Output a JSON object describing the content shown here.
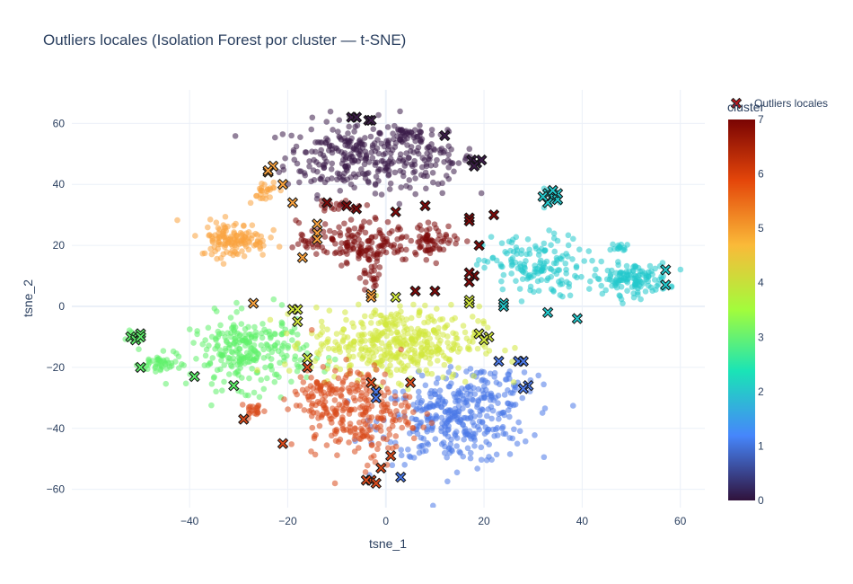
{
  "chart_data": {
    "type": "scatter",
    "title": "Outliers locales (Isolation Forest por cluster — t-SNE)",
    "xlabel": "tsne_1",
    "ylabel": "tsne_2",
    "xlim": [
      -64,
      65
    ],
    "ylim": [
      -66,
      71
    ],
    "xticks": [
      -40,
      -20,
      0,
      20,
      40,
      60
    ],
    "xtick_labels": [
      "−40",
      "−20",
      "0",
      "20",
      "40",
      "60"
    ],
    "yticks": [
      -60,
      -40,
      -20,
      0,
      20,
      40,
      60
    ],
    "ytick_labels": [
      "−60",
      "−40",
      "−20",
      "0",
      "20",
      "40",
      "60"
    ],
    "grid": true,
    "point_opacity": 0.55,
    "colorbar": {
      "title": "cluster",
      "range": [
        0,
        7
      ],
      "ticks": [
        0,
        1,
        2,
        3,
        4,
        5,
        6,
        7
      ],
      "tick_labels": [
        "0",
        "1",
        "2",
        "3",
        "4",
        "5",
        "6",
        "7"
      ],
      "colorscale": [
        "#30123b",
        "#4686fb",
        "#1ae4b6",
        "#a2fc3c",
        "#faba39",
        "#e4460a",
        "#7a0403"
      ],
      "stops": [
        0,
        0.17,
        0.34,
        0.5,
        0.67,
        0.84,
        1
      ]
    },
    "cluster_colors": {
      "0": "#3b1c48",
      "1": "#4a78e8",
      "2": "#22c8cc",
      "3": "#5ef06a",
      "4": "#d2e83c",
      "5": "#f9a23e",
      "6": "#d94a1c",
      "7": "#7c0a0a"
    },
    "clusters": [
      {
        "id": 0,
        "regions": [
          {
            "cx": -7,
            "cy": 49,
            "sx": 8,
            "sy": 7,
            "n": 240
          },
          {
            "cx": 8,
            "cy": 48,
            "sx": 6,
            "sy": 5,
            "n": 100
          },
          {
            "cx": 4,
            "cy": 57,
            "sx": 3,
            "sy": 2.5,
            "n": 30
          }
        ]
      },
      {
        "id": 1,
        "regions": [
          {
            "cx": 14,
            "cy": -38,
            "sx": 9,
            "sy": 8,
            "n": 310
          },
          {
            "cx": 20,
            "cy": -26,
            "sx": 6,
            "sy": 5,
            "n": 70
          }
        ]
      },
      {
        "id": 2,
        "regions": [
          {
            "cx": 30,
            "cy": 13,
            "sx": 6,
            "sy": 6,
            "n": 150
          },
          {
            "cx": 50,
            "cy": 9,
            "sx": 4.5,
            "sy": 3,
            "n": 130
          },
          {
            "cx": 48,
            "cy": 19,
            "sx": 1.2,
            "sy": 1,
            "n": 14
          },
          {
            "cx": 34,
            "cy": 36,
            "sx": 1.5,
            "sy": 1.5,
            "n": 20
          }
        ]
      },
      {
        "id": 3,
        "regions": [
          {
            "cx": -28,
            "cy": -15,
            "sx": 7,
            "sy": 7,
            "n": 260
          },
          {
            "cx": -46,
            "cy": -19,
            "sx": 2.5,
            "sy": 2,
            "n": 40
          },
          {
            "cx": -51,
            "cy": -10,
            "sx": 1,
            "sy": 1,
            "n": 12
          }
        ]
      },
      {
        "id": 4,
        "regions": [
          {
            "cx": 2,
            "cy": -12,
            "sx": 10,
            "sy": 7,
            "n": 420
          }
        ]
      },
      {
        "id": 5,
        "regions": [
          {
            "cx": -31,
            "cy": 22,
            "sx": 4,
            "sy": 3.5,
            "n": 130
          },
          {
            "cx": -25,
            "cy": 38,
            "sx": 2,
            "sy": 2,
            "n": 25
          }
        ]
      },
      {
        "id": 6,
        "regions": [
          {
            "cx": -5,
            "cy": -35,
            "sx": 6,
            "sy": 9,
            "n": 230
          },
          {
            "cx": -14,
            "cy": -30,
            "sx": 3.5,
            "sy": 5,
            "n": 70
          },
          {
            "cx": -27,
            "cy": -34,
            "sx": 1.5,
            "sy": 1.5,
            "n": 20
          }
        ]
      },
      {
        "id": 7,
        "regions": [
          {
            "cx": -6,
            "cy": 21,
            "sx": 7,
            "sy": 4,
            "n": 160
          },
          {
            "cx": 10,
            "cy": 22,
            "sx": 3,
            "sy": 3,
            "n": 60
          },
          {
            "cx": -3,
            "cy": 11,
            "sx": 1.5,
            "sy": 4,
            "n": 25
          },
          {
            "cx": -10,
            "cy": 33,
            "sx": 2.5,
            "sy": 1.5,
            "n": 20
          }
        ]
      }
    ],
    "outliers": {
      "name": "Outliers locales",
      "points": [
        [
          -7,
          62,
          0
        ],
        [
          -6,
          62,
          0
        ],
        [
          -3.5,
          61,
          0
        ],
        [
          -3,
          61,
          0
        ],
        [
          12,
          56,
          0
        ],
        [
          17.5,
          48,
          0
        ],
        [
          18.5,
          47,
          0
        ],
        [
          19.5,
          48,
          0
        ],
        [
          18,
          46,
          0
        ],
        [
          -23,
          46,
          5
        ],
        [
          -24,
          44,
          5
        ],
        [
          -21,
          40,
          5
        ],
        [
          -19,
          34,
          5
        ],
        [
          -17,
          16,
          5
        ],
        [
          -14,
          27,
          5
        ],
        [
          -14,
          24,
          5
        ],
        [
          -14,
          22,
          5
        ],
        [
          -3,
          4,
          5
        ],
        [
          -3,
          3,
          5
        ],
        [
          -27,
          1,
          5
        ],
        [
          -24,
          44.5,
          5
        ],
        [
          -12,
          34,
          7
        ],
        [
          -8,
          33,
          7
        ],
        [
          -6,
          32,
          7
        ],
        [
          2,
          31,
          7
        ],
        [
          8,
          33,
          7
        ],
        [
          17,
          29,
          7
        ],
        [
          17,
          28,
          7
        ],
        [
          22,
          30,
          7
        ],
        [
          19,
          20,
          7
        ],
        [
          6,
          5,
          7
        ],
        [
          10,
          5,
          7
        ],
        [
          17,
          8,
          7
        ],
        [
          18,
          10,
          7
        ],
        [
          17,
          11,
          7
        ],
        [
          33,
          37,
          2
        ],
        [
          34,
          36,
          2
        ],
        [
          35,
          35,
          2
        ],
        [
          33,
          34,
          2
        ],
        [
          35,
          37,
          2
        ],
        [
          34,
          38,
          2
        ],
        [
          32,
          36,
          2
        ],
        [
          57,
          12,
          2
        ],
        [
          57,
          7,
          2
        ],
        [
          24,
          1,
          2
        ],
        [
          24,
          0,
          2
        ],
        [
          33,
          -2,
          2
        ],
        [
          39,
          -4,
          2
        ],
        [
          17,
          2,
          4
        ],
        [
          17,
          1,
          4
        ],
        [
          19,
          -9,
          4
        ],
        [
          21,
          -10,
          4
        ],
        [
          20,
          -11,
          4
        ],
        [
          2,
          3,
          4
        ],
        [
          -19,
          -1,
          4
        ],
        [
          -18,
          -1,
          4
        ],
        [
          -18,
          -5,
          4
        ],
        [
          -16,
          -17,
          4
        ],
        [
          -50,
          -9,
          3
        ],
        [
          -52,
          -10,
          3
        ],
        [
          -51,
          -11,
          3
        ],
        [
          -50,
          -10,
          3
        ],
        [
          -50,
          -20,
          3
        ],
        [
          -39,
          -23,
          3
        ],
        [
          -31,
          -26,
          3
        ],
        [
          23,
          -18,
          1
        ],
        [
          27,
          -18,
          1
        ],
        [
          28,
          -18,
          1
        ],
        [
          29,
          -26,
          1
        ],
        [
          28,
          -27,
          1
        ],
        [
          -2,
          -28,
          1
        ],
        [
          -2,
          -30,
          1
        ],
        [
          3,
          -56,
          1
        ],
        [
          -3,
          -25,
          6
        ],
        [
          5,
          -25,
          6
        ],
        [
          -29,
          -37,
          6
        ],
        [
          -21,
          -45,
          6
        ],
        [
          -16,
          -20,
          6
        ],
        [
          -3,
          -57,
          6
        ],
        [
          -2,
          -58,
          6
        ],
        [
          -1,
          -53,
          6
        ],
        [
          1,
          -49,
          6
        ],
        [
          -4,
          -57,
          6
        ]
      ]
    }
  }
}
